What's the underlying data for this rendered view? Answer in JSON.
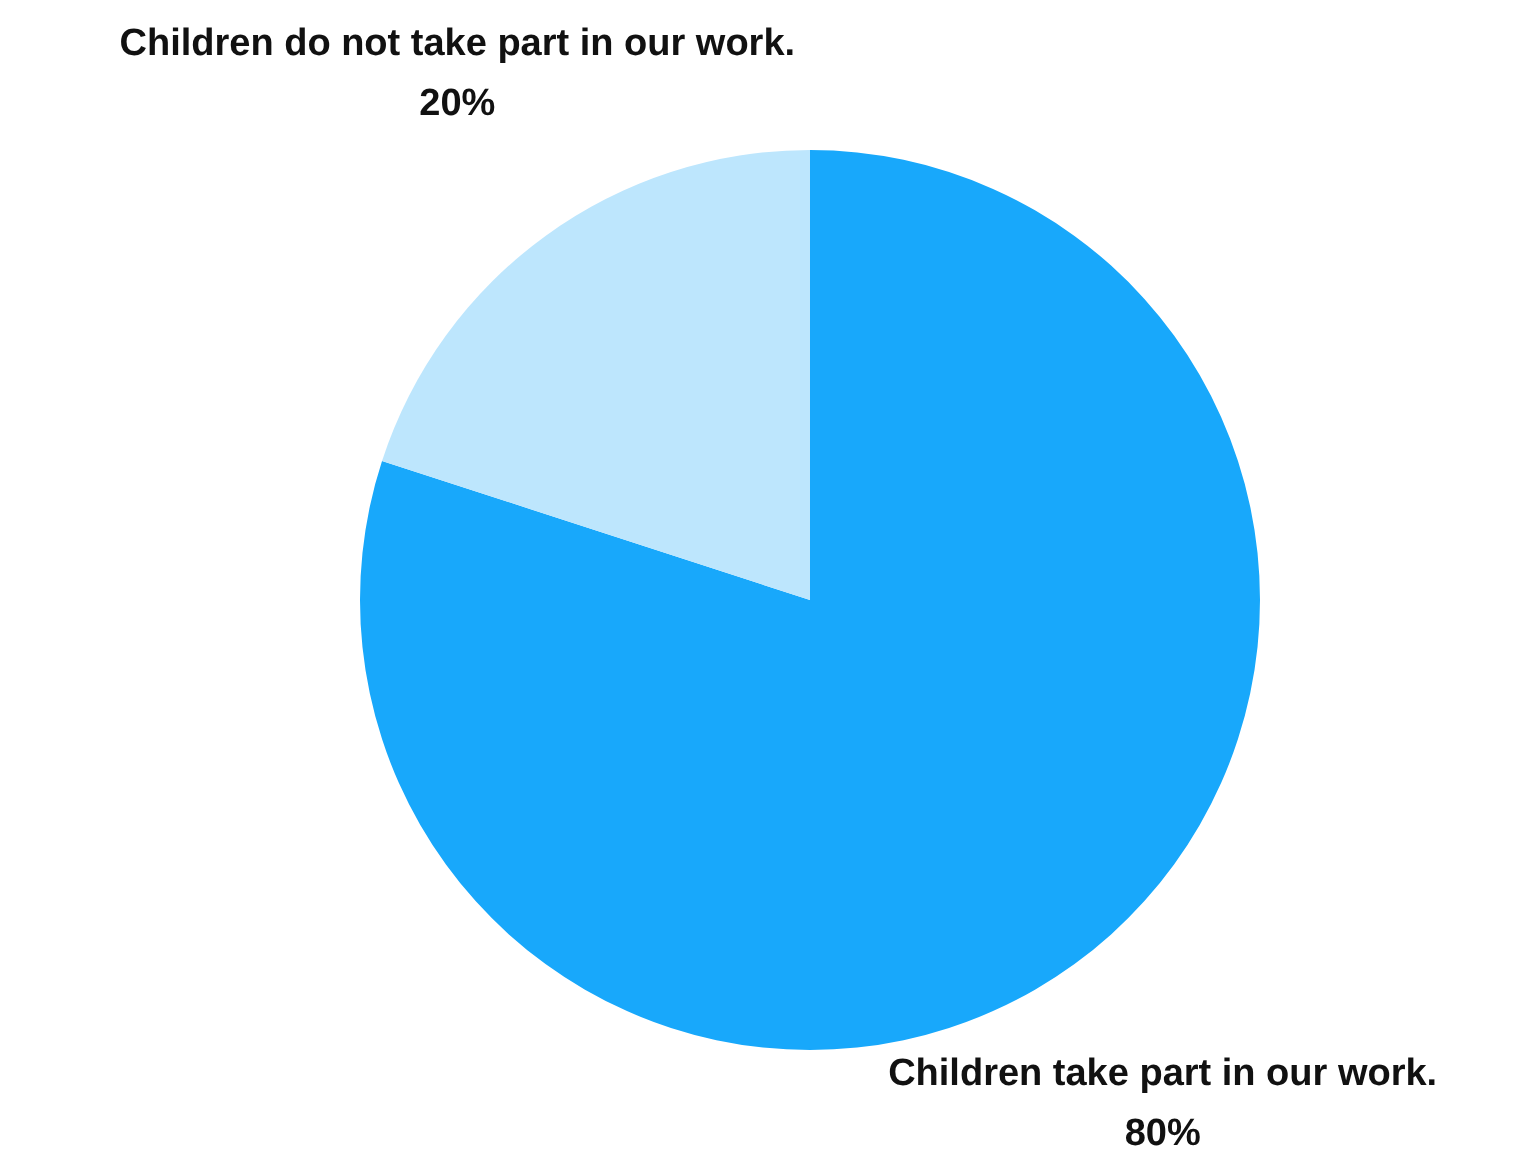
{
  "chart_data": {
    "type": "pie",
    "categories": [
      "Children take part in our work.",
      "Children do not take part in our work."
    ],
    "values": [
      80,
      20
    ],
    "colors": [
      "#18a8fb",
      "#bde6fd"
    ],
    "value_labels": [
      "80%",
      "20%"
    ]
  }
}
